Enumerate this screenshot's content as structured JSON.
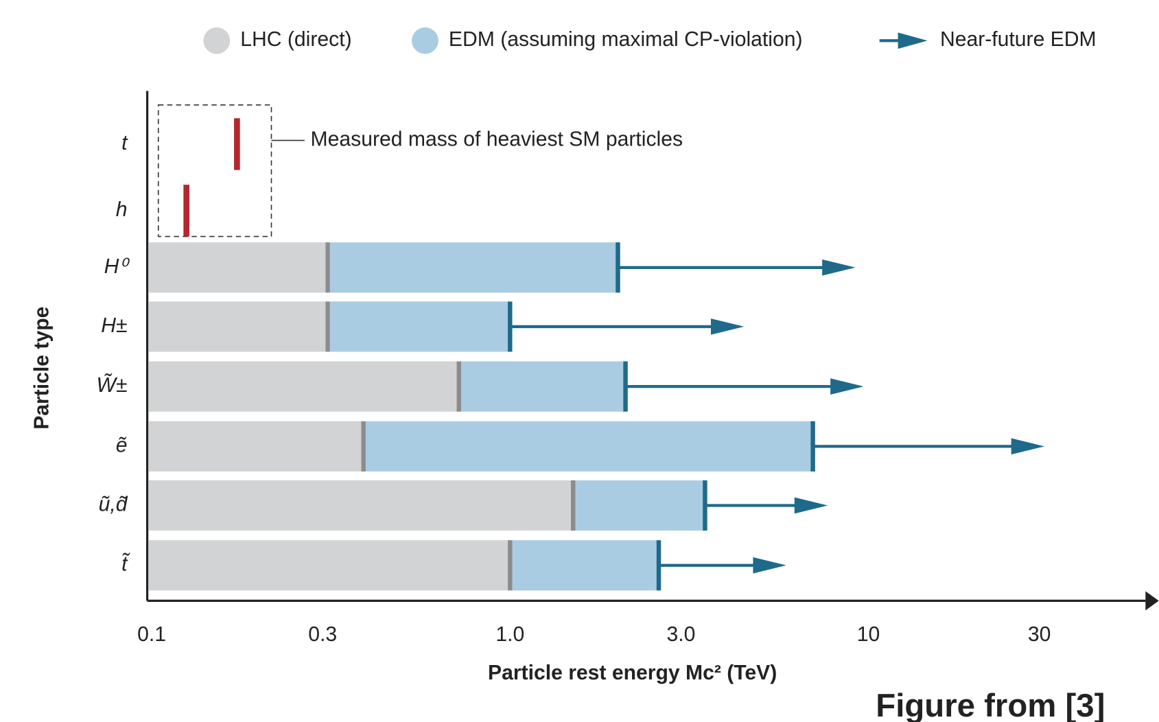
{
  "chart_data": {
    "type": "range-bar",
    "x_label": "Particle rest energy Mc² (TeV)",
    "y_label": "Particle type",
    "x_log": true,
    "xlim": [
      0.1,
      100
    ],
    "xticks": [
      0.1,
      0.3,
      {
        "value": 1,
        "label": "1.0"
      },
      {
        "value": 3,
        "label": "3.0"
      },
      10,
      30
    ],
    "categories": [
      "t",
      "h",
      "H⁰",
      "H±",
      "W̃±",
      "ẽ",
      "ũ,d̃",
      "t̃"
    ],
    "series": [
      {
        "name": "LHC (direct)",
        "color": "#d1d3d4",
        "values": [
          null,
          null,
          0.31,
          0.31,
          0.72,
          0.39,
          1.5,
          1.0
        ]
      },
      {
        "name": "EDM (assuming maximal CP-violation)",
        "color": "#a9cce3",
        "values": [
          null,
          null,
          2.0,
          1.0,
          2.1,
          7.0,
          3.5,
          2.6
        ]
      },
      {
        "name": "Near-future EDM",
        "color": "#1f6a8a",
        "values": [
          null,
          null,
          9.2,
          4.5,
          9.7,
          31,
          7.7,
          5.9
        ]
      }
    ],
    "measured": {
      "label": "Measured mass of heaviest SM particles",
      "color": "#b3272d",
      "values": [
        0.173,
        0.125,
        null,
        null,
        null,
        null,
        null,
        null
      ]
    },
    "source": "Figure from [3]"
  }
}
